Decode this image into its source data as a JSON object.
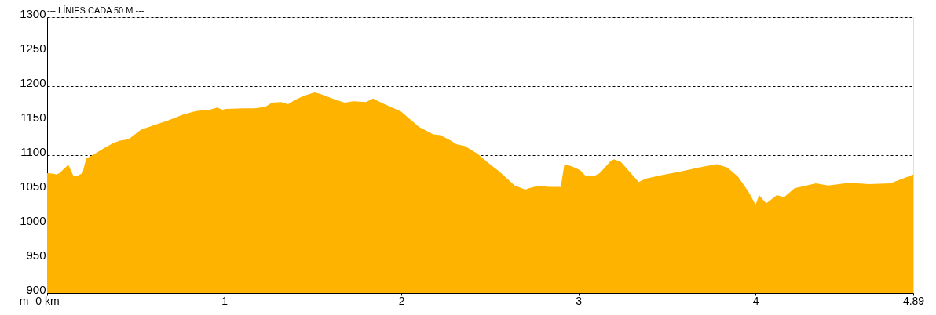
{
  "chart_data": {
    "type": "area",
    "title": "--- LÍNIES CADA 50 M ---",
    "ylabel": "m",
    "x": [
      0,
      0.04,
      0.05,
      0.07,
      0.09,
      0.12,
      0.15,
      0.17,
      0.2,
      0.22,
      0.27,
      0.32,
      0.37,
      0.41,
      0.46,
      0.53,
      0.61,
      0.68,
      0.77,
      0.84,
      0.92,
      0.96,
      0.99,
      1.01,
      1.11,
      1.17,
      1.23,
      1.27,
      1.32,
      1.36,
      1.4,
      1.45,
      1.51,
      1.54,
      1.57,
      1.61,
      1.68,
      1.73,
      1.8,
      1.84,
      1.88,
      1.93,
      2.0,
      2.04,
      2.1,
      2.18,
      2.22,
      2.28,
      2.31,
      2.36,
      2.43,
      2.49,
      2.55,
      2.64,
      2.7,
      2.72,
      2.78,
      2.83,
      2.9,
      2.92,
      2.96,
      3.01,
      3.04,
      3.09,
      3.12,
      3.18,
      3.2,
      3.24,
      3.34,
      3.38,
      3.47,
      3.59,
      3.68,
      3.78,
      3.84,
      3.9,
      3.96,
      4.0,
      4.02,
      4.06,
      4.12,
      4.16,
      4.22,
      4.34,
      4.41,
      4.53,
      4.64,
      4.76,
      4.83,
      4.89
    ],
    "series": [
      {
        "color": "#fdb300",
        "values": [
          1074,
          1073,
          1072,
          1074,
          1079,
          1086,
          1069,
          1070,
          1074,
          1095,
          1102,
          1110,
          1117,
          1121,
          1123,
          1137,
          1144,
          1150,
          1159,
          1164,
          1166,
          1169,
          1166,
          1167,
          1168,
          1168,
          1170,
          1176,
          1177,
          1174,
          1180,
          1186,
          1191,
          1189,
          1186,
          1182,
          1176,
          1178,
          1177,
          1182,
          1177,
          1171,
          1163,
          1154,
          1141,
          1130,
          1129,
          1121,
          1116,
          1113,
          1102,
          1089,
          1077,
          1056,
          1050,
          1052,
          1056,
          1054,
          1054,
          1086,
          1084,
          1078,
          1070,
          1070,
          1074,
          1091,
          1094,
          1090,
          1061,
          1066,
          1071,
          1077,
          1082,
          1087,
          1082,
          1069,
          1047,
          1028,
          1042,
          1030,
          1042,
          1039,
          1052,
          1059,
          1056,
          1060,
          1058,
          1059,
          1066,
          1072
        ]
      }
    ],
    "xlim": [
      0,
      4.89
    ],
    "xticks": [
      {
        "value": 0,
        "label": "0 km"
      },
      1,
      2,
      3,
      4,
      4.89
    ],
    "ylim": [
      900,
      1300
    ],
    "yticks": [
      900,
      950,
      1000,
      1050,
      1100,
      1150,
      1200,
      1250,
      1300
    ],
    "grid": "y"
  }
}
